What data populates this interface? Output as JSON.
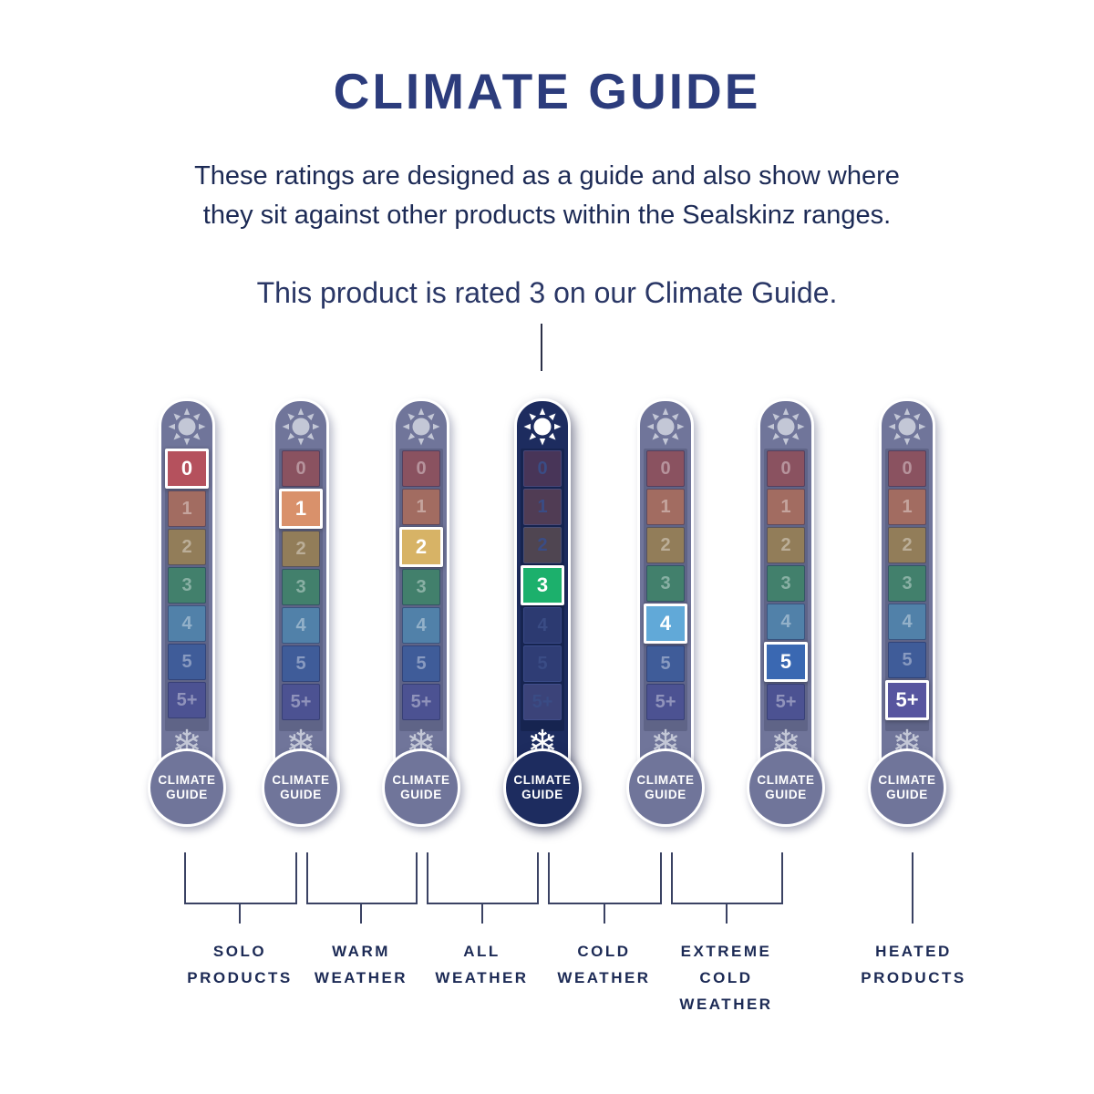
{
  "title": "CLIMATE GUIDE",
  "description": "These ratings are designed as a guide and also show where\nthey sit against other products within the Sealskinz ranges.",
  "rating_note": "This product is rated 3 on our Climate Guide.",
  "product_rating": "3",
  "bulb_label": [
    "CLIMATE",
    "GUIDE"
  ],
  "scale_labels": [
    "0",
    "1",
    "2",
    "3",
    "4",
    "5",
    "5+"
  ],
  "thermometers": [
    {
      "id": "rating-0",
      "rating": "0",
      "rating_index": 0,
      "variant": "gray",
      "selected": false
    },
    {
      "id": "rating-1",
      "rating": "1",
      "rating_index": 1,
      "variant": "gray",
      "selected": false
    },
    {
      "id": "rating-2",
      "rating": "2",
      "rating_index": 2,
      "variant": "gray",
      "selected": false
    },
    {
      "id": "rating-3",
      "rating": "3",
      "rating_index": 3,
      "variant": "navy",
      "selected": true
    },
    {
      "id": "rating-4",
      "rating": "4",
      "rating_index": 4,
      "variant": "gray",
      "selected": false
    },
    {
      "id": "rating-5",
      "rating": "5",
      "rating_index": 5,
      "variant": "gray",
      "selected": false
    },
    {
      "id": "rating-5plus",
      "rating": "5+",
      "rating_index": 6,
      "variant": "gray",
      "selected": false
    }
  ],
  "groups": [
    {
      "label": "SOLO\nPRODUCTS"
    },
    {
      "label": "WARM\nWEATHER"
    },
    {
      "label": "ALL\nWEATHER"
    },
    {
      "label": "COLD\nWEATHER"
    },
    {
      "label": "EXTREME\nCOLD\nWEATHER"
    },
    {
      "label": "HEATED\nPRODUCTS"
    }
  ],
  "icons": {
    "top": "sun-icon",
    "bottom": "snowflake-icon"
  },
  "cell_colors": {
    "bright": [
      "#b5515d",
      "#d9916b",
      "#d7b366",
      "#1cb06c",
      "#61a9d8",
      "#3a68b2",
      "#57559f"
    ],
    "muted": [
      "#8a5260",
      "#a26c61",
      "#927d59",
      "#42806c",
      "#5181a9",
      "#3f5c99",
      "#4c5292"
    ],
    "dark": [
      "#483558",
      "#503c54",
      "#4f4551",
      "#2a4a63",
      "#2c3a71",
      "#2f3d75",
      "#3b4379"
    ]
  },
  "colors": {
    "title_navy": "#2c3c7c",
    "text_navy": "#1c2a55",
    "note_navy": "#2a3766",
    "column_gray": "#70759a",
    "column_navy": "#1d2c5f",
    "track_gray": "#5f6487",
    "track_navy": "#162450",
    "icon_gray": "#c3c7d6",
    "icon_white": "#ffffff",
    "connector": "#3a4263",
    "background": "#ffffff"
  }
}
